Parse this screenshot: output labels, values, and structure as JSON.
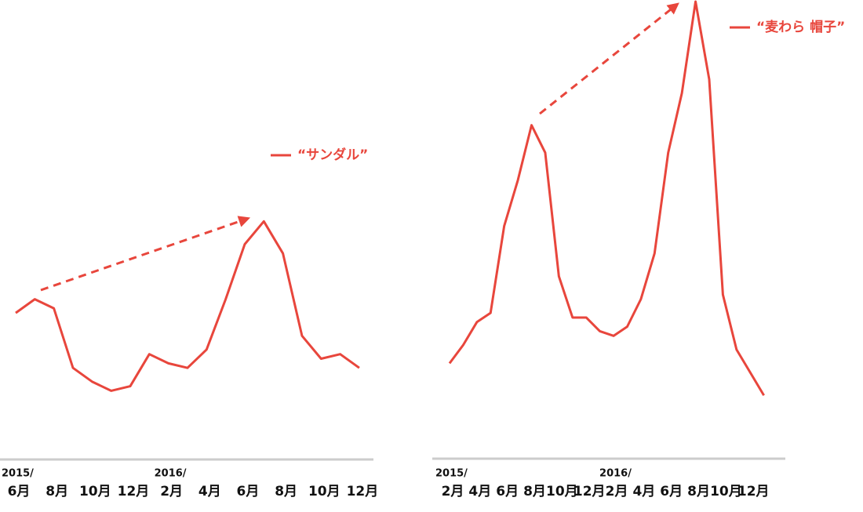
{
  "chart_data": [
    {
      "type": "line",
      "categories": [
        "6月",
        null,
        "8月",
        null,
        "10月",
        null,
        "12月",
        null,
        "2月",
        null,
        "4月",
        null,
        "6月",
        null,
        "8月",
        null,
        "10月",
        null,
        "12月"
      ],
      "year_labels": [
        "2015/",
        null,
        null,
        null,
        null,
        null,
        null,
        null,
        "2016/",
        null,
        null,
        null,
        null,
        null,
        null,
        null,
        null,
        null,
        null
      ],
      "series": [
        {
          "name": "“サンダル”",
          "color": "#e8463c",
          "values": [
            32,
            35,
            33,
            20,
            17,
            15,
            16,
            23,
            21,
            20,
            24,
            35,
            47,
            52,
            45,
            27,
            22,
            23,
            20
          ]
        }
      ],
      "ylim": [
        0,
        100
      ]
    },
    {
      "type": "line",
      "categories": [
        "2月",
        null,
        "4月",
        null,
        "6月",
        null,
        "8月",
        null,
        "10月",
        null,
        "12月",
        null,
        "2月",
        null,
        "4月",
        null,
        "6月",
        null,
        "8月",
        null,
        "10月",
        null,
        "12月",
        null
      ],
      "year_labels": [
        "2015/",
        null,
        null,
        null,
        null,
        null,
        null,
        null,
        null,
        null,
        null,
        null,
        "2016/",
        null,
        null,
        null,
        null,
        null,
        null,
        null,
        null,
        null,
        null,
        null
      ],
      "series": [
        {
          "name": "“麦わら 帽子”",
          "color": "#e8463c",
          "values": [
            21,
            25,
            30,
            32,
            51,
            61,
            73,
            67,
            40,
            31,
            31,
            28,
            27,
            29,
            35,
            45,
            67,
            80,
            100,
            83,
            36,
            24,
            19,
            14
          ]
        }
      ],
      "ylim": [
        0,
        100
      ]
    }
  ]
}
